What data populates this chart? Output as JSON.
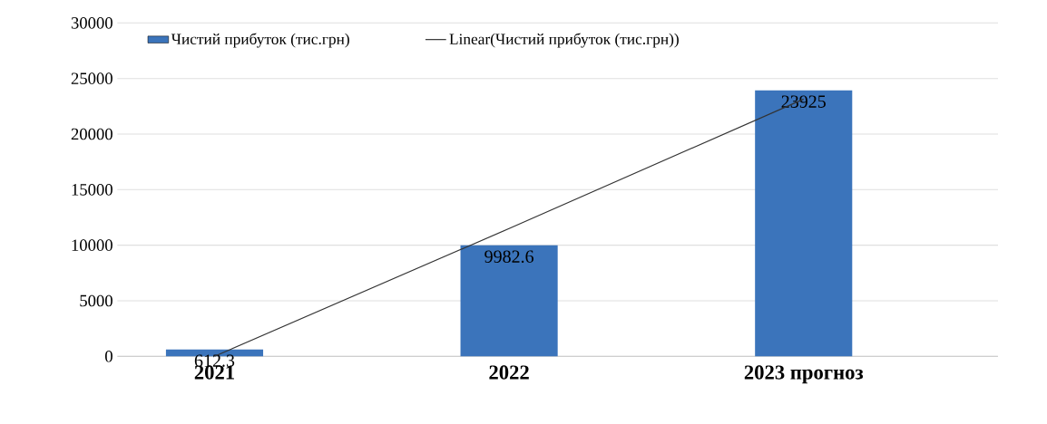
{
  "chart_data": {
    "type": "bar",
    "categories": [
      "2021",
      "2022",
      "2023 прогноз"
    ],
    "series": [
      {
        "name": "Чистий прибуток  (тис.грн)",
        "color": "#3b74bb",
        "values": [
          612.3,
          9982.6,
          23925
        ],
        "value_labels": [
          "612.3",
          "9982.6",
          "23925"
        ]
      },
      {
        "name": "Linear(Чистий прибуток  (тис.грн))",
        "type": "line",
        "color": "#333333",
        "values": [
          0,
          11500,
          23150
        ]
      }
    ],
    "ylim": [
      0,
      30000
    ],
    "yticks": [
      0,
      5000,
      10000,
      15000,
      20000,
      25000,
      30000
    ],
    "grid": "y",
    "legend": "top"
  }
}
